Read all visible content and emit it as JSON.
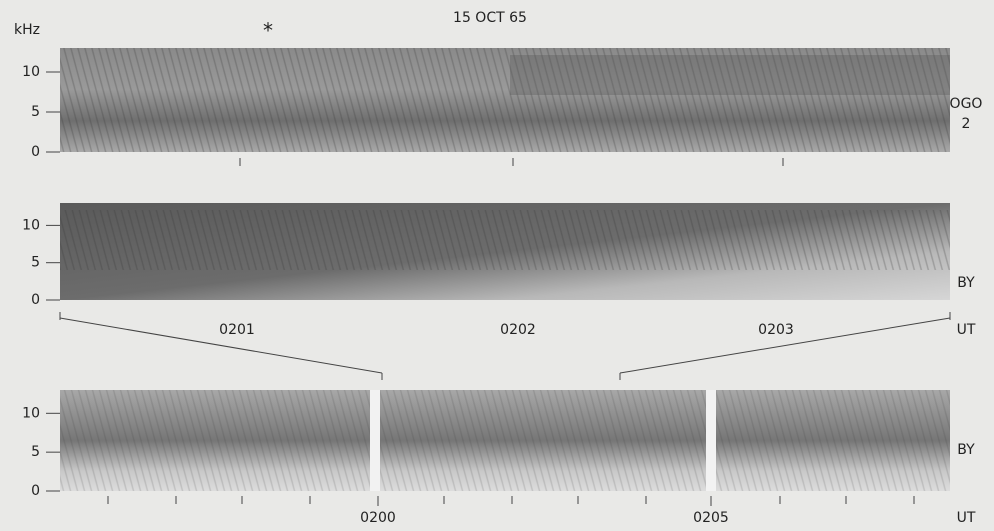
{
  "header": {
    "title": "15 OCT 65",
    "unit": "kHz",
    "marker": "*"
  },
  "panels": [
    {
      "label": [
        "OGO",
        "2"
      ],
      "ylim": [
        0,
        13
      ],
      "yticks": [
        0,
        5,
        10
      ],
      "xticks": []
    },
    {
      "label": [
        "BY"
      ],
      "ylim": [
        0,
        13
      ],
      "yticks": [
        0,
        5,
        10
      ],
      "xticks": [
        "0201",
        "0202",
        "0203"
      ],
      "axis_label": "UT"
    },
    {
      "label": [
        "BY"
      ],
      "ylim": [
        0,
        13
      ],
      "yticks": [
        0,
        5,
        10
      ],
      "xticks": [
        "0200",
        "0205"
      ],
      "axis_label": "UT"
    }
  ]
}
